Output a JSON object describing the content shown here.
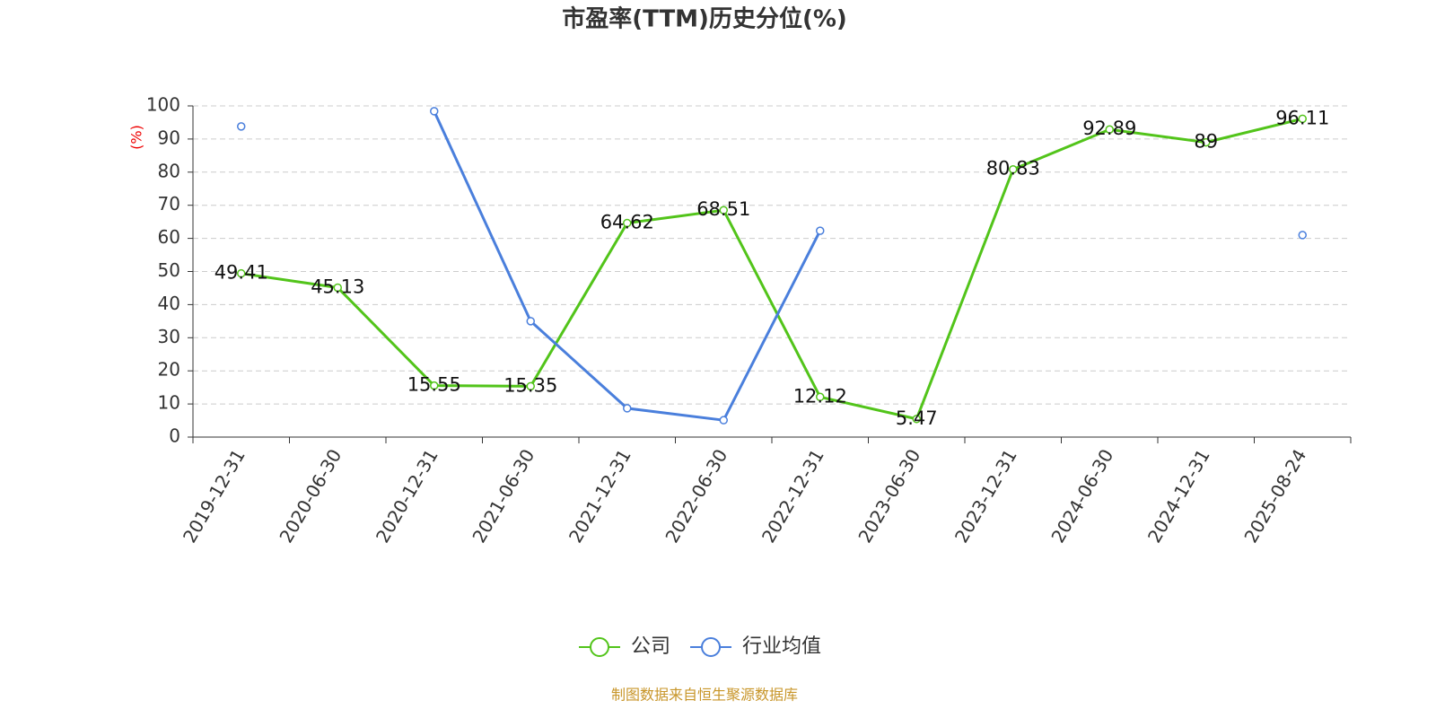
{
  "chart_data": {
    "type": "line",
    "title": "市盈率(TTM)历史分位(%)",
    "y_label": "(%)",
    "categories": [
      "2019-12-31",
      "2020-06-30",
      "2020-12-31",
      "2021-06-30",
      "2021-12-31",
      "2022-06-30",
      "2022-12-31",
      "2023-06-30",
      "2023-12-31",
      "2024-06-30",
      "2024-12-31",
      "2025-08-24"
    ],
    "series": [
      {
        "name": "公司",
        "color": "#52c41a",
        "values": [
          49.41,
          45.13,
          15.55,
          15.35,
          64.62,
          68.51,
          12.12,
          5.47,
          80.83,
          92.89,
          89,
          96.11
        ]
      },
      {
        "name": "行业均值",
        "color": "#4a7fdc",
        "values": [
          93.8,
          null,
          98.4,
          35.0,
          8.7,
          5.1,
          62.3,
          null,
          null,
          null,
          null,
          61.0
        ]
      }
    ],
    "ylim": [
      0,
      100
    ],
    "yticks": [
      0,
      10,
      20,
      30,
      40,
      50,
      60,
      70,
      80,
      90,
      100
    ],
    "grid": true,
    "source": "制图数据来自恒生聚源数据库"
  }
}
